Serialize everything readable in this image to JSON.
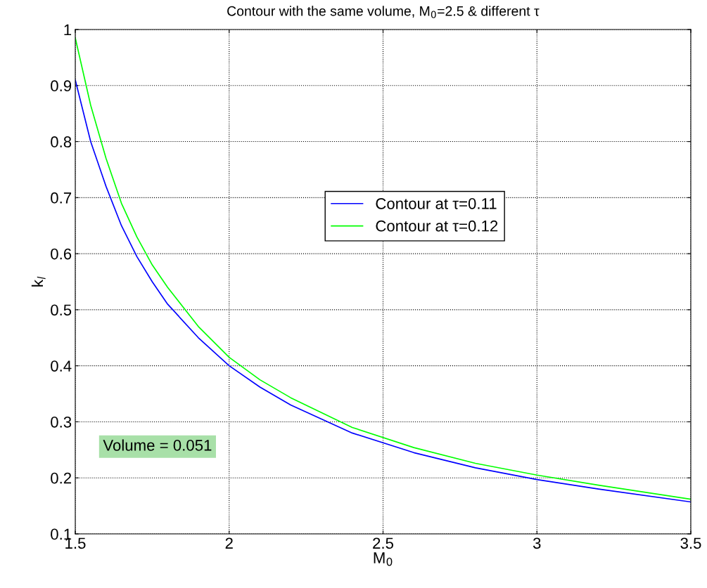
{
  "chart_data": {
    "type": "line",
    "title": "Contour with the same volume, M$_{0}$=2.5 & different τ",
    "xlabel": "M$_{0}$",
    "ylabel": "k$_{l}$",
    "series": [
      {
        "name": "Contour at τ=0.11",
        "color": "#0000ff",
        "x": [
          1.5,
          1.55,
          1.6,
          1.65,
          1.7,
          1.75,
          1.8,
          1.9,
          2.0,
          2.1,
          2.2,
          2.4,
          2.6,
          2.8,
          3.0,
          3.2,
          3.5
        ],
        "values": [
          0.91,
          0.8,
          0.72,
          0.65,
          0.595,
          0.55,
          0.51,
          0.45,
          0.4,
          0.362,
          0.33,
          0.28,
          0.245,
          0.218,
          0.197,
          0.18,
          0.157
        ]
      },
      {
        "name": "Contour at τ=0.12",
        "color": "#00ff00",
        "x": [
          1.5,
          1.55,
          1.6,
          1.65,
          1.7,
          1.75,
          1.8,
          1.9,
          2.0,
          2.1,
          2.2,
          2.4,
          2.6,
          2.8,
          3.0,
          3.2,
          3.5
        ],
        "values": [
          0.985,
          0.865,
          0.77,
          0.69,
          0.63,
          0.58,
          0.54,
          0.47,
          0.415,
          0.375,
          0.343,
          0.29,
          0.254,
          0.226,
          0.205,
          0.187,
          0.162
        ]
      }
    ],
    "annotations": [
      "Volume = 0.051"
    ],
    "xlim": [
      1.5,
      3.5
    ],
    "xticks": [
      1.5,
      2,
      2.5,
      3,
      3.5
    ],
    "ylim": [
      0.1,
      1
    ],
    "yticks": [
      0.1,
      0.2,
      0.3,
      0.4,
      0.5,
      0.6,
      0.7,
      0.8,
      0.9,
      1
    ],
    "grid": true,
    "legend": "right",
    "line_style": "solid",
    "marker": "none"
  }
}
